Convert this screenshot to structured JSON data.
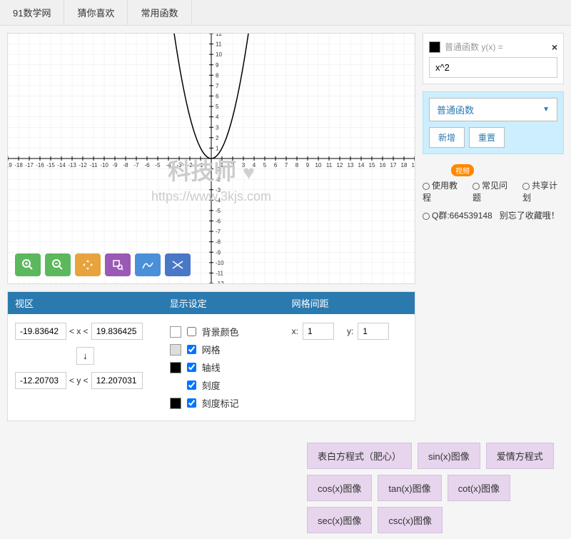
{
  "nav": {
    "items": [
      "91数学网",
      "猜你喜欢",
      "常用函数"
    ]
  },
  "graph": {
    "type": "function-plot",
    "function": "x^2",
    "xlim": [
      -19,
      19
    ],
    "ylim": [
      -12,
      12
    ],
    "xtick_step": 1,
    "ytick_step": 1,
    "grid_color": "#e8e8e8",
    "axis_color": "#000000",
    "curve_color": "#000000",
    "background_color": "#ffffff"
  },
  "watermark": {
    "text": "科技师",
    "url": "https://www.3kjs.com"
  },
  "toolbar": {
    "buttons": [
      {
        "name": "zoom-in",
        "color": "#5cb85c"
      },
      {
        "name": "zoom-out",
        "color": "#5cb85c"
      },
      {
        "name": "pan",
        "color": "#e8a33d"
      },
      {
        "name": "zoom-box",
        "color": "#9b59b6"
      },
      {
        "name": "trace1",
        "color": "#4a90d9"
      },
      {
        "name": "trace2",
        "color": "#4a78c9"
      }
    ]
  },
  "settings": {
    "viewport": {
      "header": "视区",
      "xmin": "-19.83642",
      "xmax": "19.836425",
      "ymin": "-12.20703",
      "ymax": "12.207031",
      "lt_x": "< x <",
      "lt_y": "< y <",
      "reset_icon": "↓"
    },
    "display": {
      "header": "显示设定",
      "options": [
        {
          "label": "背景颜色",
          "checked": false,
          "swatch": "#ffffff"
        },
        {
          "label": "网格",
          "checked": true,
          "swatch": "#dddddd"
        },
        {
          "label": "轴线",
          "checked": true,
          "swatch": "#000000"
        },
        {
          "label": "刻度",
          "checked": true,
          "swatch": null
        },
        {
          "label": "刻度标记",
          "checked": true,
          "swatch": "#000000"
        }
      ]
    },
    "grid": {
      "header": "网格间距",
      "x_label": "x:",
      "x_val": "1",
      "y_label": "y:",
      "y_val": "1"
    }
  },
  "func_panel": {
    "label": "普通函数 y(x) =",
    "value": "x^2",
    "dropdown": "普通函数",
    "add_btn": "新增",
    "reset_btn": "重置"
  },
  "links": {
    "video_badge": "视频",
    "items": [
      "使用教程",
      "常见问题",
      "共享计划"
    ],
    "qq_label": "Q群:664539148",
    "qq_note": "别忘了收藏哦！"
  },
  "presets": {
    "rows": [
      [
        "表白方程式（肥心）",
        "sin(x)图像",
        "爱情方程式"
      ],
      [
        "cos(x)图像",
        "tan(x)图像",
        "cot(x)图像"
      ],
      [
        "sec(x)图像",
        "csc(x)图像"
      ]
    ]
  }
}
